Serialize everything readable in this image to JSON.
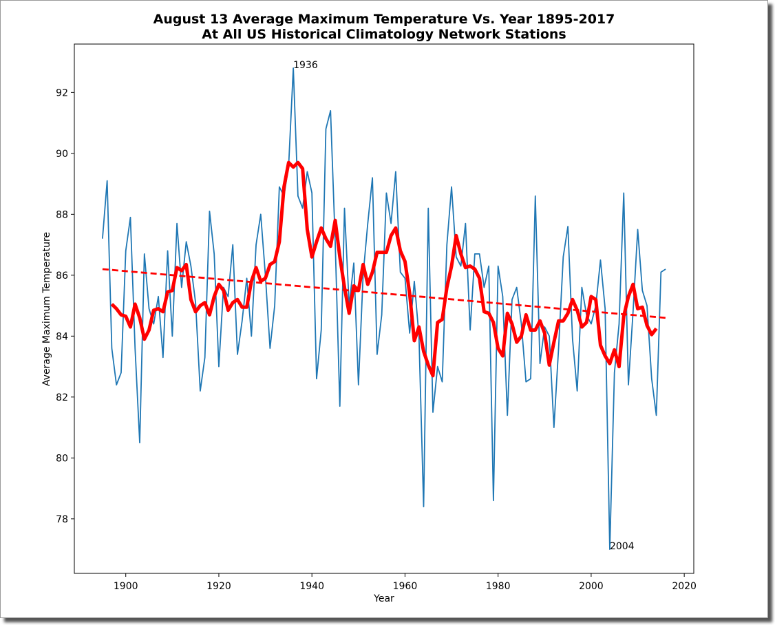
{
  "chart_data": {
    "type": "line",
    "title": [
      "August 13 Average Maximum Temperature Vs. Year 1895-2017",
      "At All US Historical Climatology Network Stations"
    ],
    "x_label": "Year",
    "y_label": "Average Maximum Temperature",
    "xlim": [
      1888.95,
      2022.05
    ],
    "ylim": [
      76.21,
      93.59
    ],
    "xticks": [
      1900,
      1920,
      1940,
      1960,
      1980,
      2000,
      2020
    ],
    "yticks": [
      78,
      80,
      82,
      84,
      86,
      88,
      90,
      92
    ],
    "x": [
      1895,
      1896,
      1897,
      1898,
      1899,
      1900,
      1901,
      1902,
      1903,
      1904,
      1905,
      1906,
      1907,
      1908,
      1909,
      1910,
      1911,
      1912,
      1913,
      1914,
      1915,
      1916,
      1917,
      1918,
      1919,
      1920,
      1921,
      1922,
      1923,
      1924,
      1925,
      1926,
      1927,
      1928,
      1929,
      1930,
      1931,
      1932,
      1933,
      1934,
      1935,
      1936,
      1937,
      1938,
      1939,
      1940,
      1941,
      1942,
      1943,
      1944,
      1945,
      1946,
      1947,
      1948,
      1949,
      1950,
      1951,
      1952,
      1953,
      1954,
      1955,
      1956,
      1957,
      1958,
      1959,
      1960,
      1961,
      1962,
      1963,
      1964,
      1965,
      1966,
      1967,
      1968,
      1969,
      1970,
      1971,
      1972,
      1973,
      1974,
      1975,
      1976,
      1977,
      1978,
      1979,
      1980,
      1981,
      1982,
      1983,
      1984,
      1985,
      1986,
      1987,
      1988,
      1989,
      1990,
      1991,
      1992,
      1993,
      1994,
      1995,
      1996,
      1997,
      1998,
      1999,
      2000,
      2001,
      2002,
      2003,
      2004,
      2005,
      2006,
      2007,
      2008,
      2009,
      2010,
      2011,
      2012,
      2013,
      2014,
      2015,
      2016
    ],
    "series": [
      {
        "color": "#1f77b4",
        "width": 1.8,
        "values": [
          87.2,
          89.1,
          83.6,
          82.4,
          82.8,
          86.8,
          87.9,
          83.6,
          80.5,
          86.7,
          84.9,
          84.4,
          85.3,
          83.3,
          86.8,
          84.0,
          87.7,
          85.6,
          87.1,
          86.3,
          85.1,
          82.2,
          83.3,
          88.1,
          86.7,
          83.0,
          85.6,
          85.3,
          87.0,
          83.4,
          84.5,
          85.9,
          84.0,
          87.0,
          88.0,
          86.0,
          83.6,
          85.0,
          88.9,
          88.6,
          89.6,
          92.8,
          88.6,
          88.2,
          89.4,
          88.7,
          82.6,
          84.2,
          90.8,
          91.4,
          87.1,
          81.7,
          88.2,
          85.0,
          86.4,
          82.4,
          86.0,
          87.7,
          89.2,
          83.4,
          84.7,
          88.7,
          87.7,
          89.4,
          86.1,
          85.9,
          84.1,
          85.8,
          84.0,
          78.4,
          88.2,
          81.5,
          83.0,
          82.5,
          87.0,
          88.9,
          86.6,
          86.3,
          87.7,
          84.2,
          86.7,
          86.7,
          85.6,
          86.3,
          78.6,
          86.3,
          85.3,
          81.4,
          85.2,
          85.6,
          84.4,
          82.5,
          82.6,
          88.6,
          83.1,
          84.3,
          84.0,
          81.0,
          83.6,
          86.6,
          87.6,
          83.9,
          82.2,
          85.6,
          84.7,
          84.4,
          85.0,
          86.5,
          84.9,
          77.0,
          82.8,
          84.4,
          88.7,
          82.4,
          84.8,
          87.5,
          85.5,
          85.0,
          82.6,
          81.4,
          86.1,
          86.2
        ]
      },
      {
        "color": "#ff0000",
        "width": 5,
        "values": [
          null,
          null,
          85.05,
          84.9,
          84.7,
          84.65,
          84.3,
          85.05,
          84.6,
          83.9,
          84.2,
          84.85,
          84.9,
          84.8,
          85.45,
          85.5,
          86.25,
          86.15,
          86.35,
          85.2,
          84.8,
          85.0,
          85.1,
          84.7,
          85.3,
          85.7,
          85.5,
          84.85,
          85.1,
          85.2,
          84.95,
          84.95,
          85.8,
          86.25,
          85.8,
          85.9,
          86.35,
          86.45,
          87.1,
          88.9,
          89.7,
          89.55,
          89.7,
          89.5,
          87.5,
          86.6,
          87.1,
          87.55,
          87.2,
          86.95,
          87.8,
          86.6,
          85.6,
          84.75,
          85.65,
          85.5,
          86.35,
          85.7,
          86.1,
          86.75,
          86.75,
          86.75,
          87.3,
          87.55,
          86.8,
          86.45,
          85.4,
          83.85,
          84.3,
          83.5,
          83.05,
          82.7,
          84.45,
          84.55,
          85.6,
          86.3,
          87.3,
          86.7,
          86.25,
          86.3,
          86.2,
          85.9,
          84.8,
          84.75,
          84.45,
          83.6,
          83.35,
          84.75,
          84.4,
          83.8,
          84.0,
          84.7,
          84.2,
          84.2,
          84.5,
          84.1,
          83.05,
          83.8,
          84.5,
          84.5,
          84.75,
          85.2,
          84.85,
          84.3,
          84.45,
          85.3,
          85.2,
          83.7,
          83.35,
          83.1,
          83.55,
          83.0,
          84.65,
          85.3,
          85.7,
          84.9,
          84.95,
          84.35,
          84.05,
          84.25,
          null,
          null
        ]
      },
      {
        "color": "#ff0000",
        "width": 2.8,
        "dashed": true,
        "x": [
          1895,
          2016
        ],
        "values": [
          86.2,
          84.6
        ]
      }
    ],
    "annotations": [
      {
        "text": "1936",
        "x": 1936,
        "y": 92.8
      },
      {
        "text": "2004",
        "x": 2004,
        "y": 77.0
      }
    ]
  }
}
